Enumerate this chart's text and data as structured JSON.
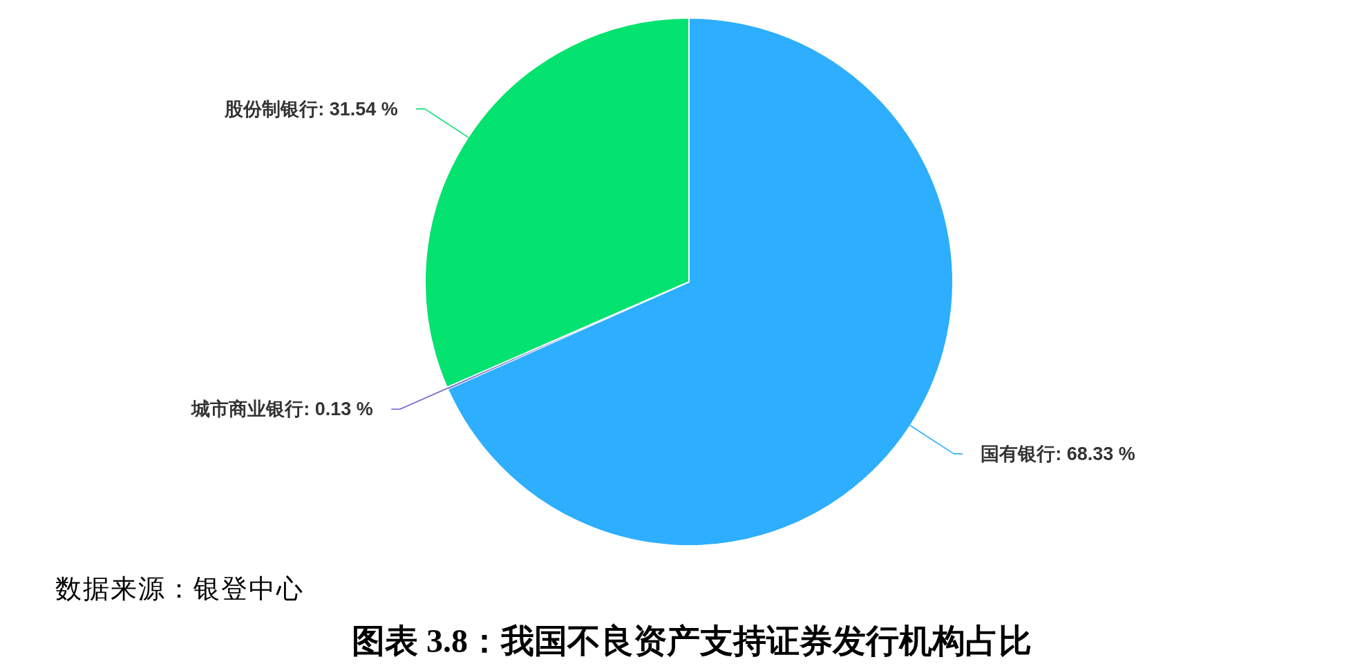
{
  "chart_data": {
    "type": "pie",
    "title": "图表 3.8：我国不良资产支持证券发行机构占比",
    "annotations": [
      "数据来源：银登中心"
    ],
    "categories": [
      "国有银行",
      "城市商业银行",
      "股份制银行"
    ],
    "values": [
      68.33,
      0.13,
      31.54
    ],
    "value_labels": [
      "68.33 %",
      "0.13 %",
      "31.54 %"
    ],
    "colors": [
      "#2daefe",
      "#6c5fd3",
      "#04e270"
    ]
  }
}
